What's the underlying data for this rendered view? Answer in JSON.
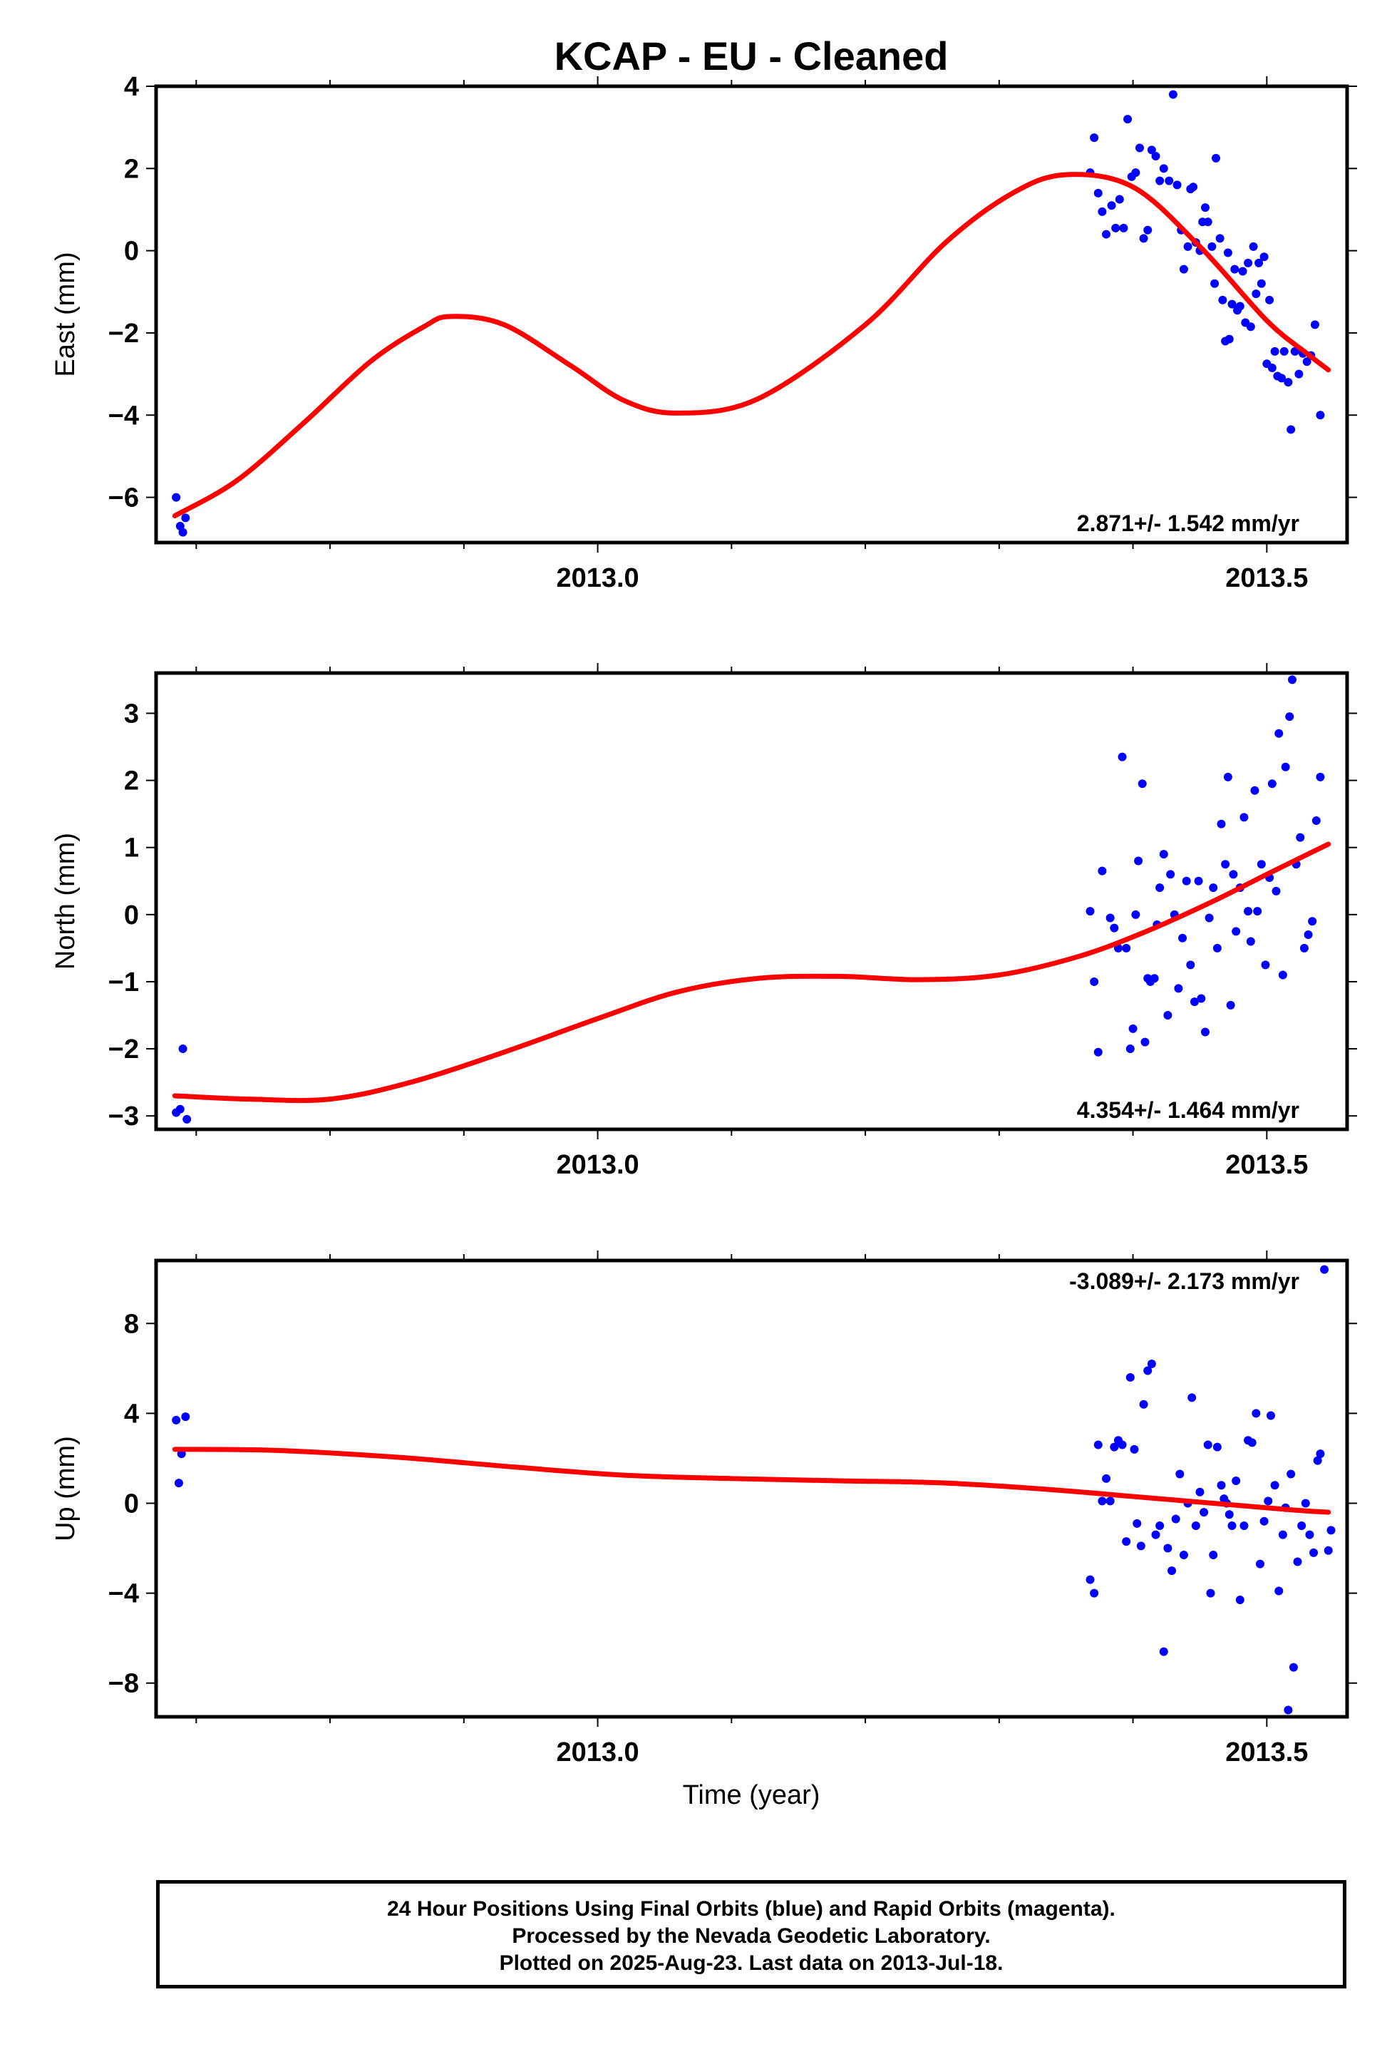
{
  "title": "KCAP  - EU - Cleaned",
  "colors": {
    "data_points": "#0000ff",
    "fit": "#ff0000",
    "axes": "#000000"
  },
  "xlabel": "Time (year)",
  "footer": {
    "line1": "24 Hour Positions Using Final Orbits (blue) and Rapid Orbits (magenta).",
    "line2": "Processed by the Nevada Geodetic Laboratory.",
    "line3": "Plotted on 2025-Aug-23. Last data on 2013-Jul-18."
  },
  "chart_data": [
    {
      "type": "scatter",
      "panel": "east",
      "ylabel": "East (mm)",
      "xlim": [
        2012.67,
        2013.56
      ],
      "ylim": [
        -7.1,
        4.0
      ],
      "xticks": [
        2013.0,
        2013.5
      ],
      "xtick_labels": [
        "2013.0",
        "2013.5"
      ],
      "yticks": [
        -6,
        -4,
        -2,
        0,
        2,
        4
      ],
      "ytick_labels": [
        "−6",
        "−4",
        "−2",
        "0",
        "2",
        "4"
      ],
      "annotation": "2.871+/- 1.542 mm/yr",
      "annotation_position": "bottom-right",
      "points": [
        [
          2012.685,
          -6.0
        ],
        [
          2012.688,
          -6.7
        ],
        [
          2012.69,
          -6.85
        ],
        [
          2012.692,
          -6.5
        ],
        [
          2013.368,
          1.9
        ],
        [
          2013.371,
          2.75
        ],
        [
          2013.374,
          1.4
        ],
        [
          2013.377,
          0.95
        ],
        [
          2013.38,
          0.4
        ],
        [
          2013.384,
          1.1
        ],
        [
          2013.387,
          0.55
        ],
        [
          2013.39,
          1.25
        ],
        [
          2013.393,
          0.55
        ],
        [
          2013.396,
          3.2
        ],
        [
          2013.399,
          1.8
        ],
        [
          2013.402,
          1.9
        ],
        [
          2013.405,
          2.5
        ],
        [
          2013.408,
          0.3
        ],
        [
          2013.411,
          0.5
        ],
        [
          2013.414,
          2.45
        ],
        [
          2013.417,
          2.3
        ],
        [
          2013.42,
          1.7
        ],
        [
          2013.423,
          2.0
        ],
        [
          2013.427,
          1.7
        ],
        [
          2013.43,
          3.8
        ],
        [
          2013.433,
          1.6
        ],
        [
          2013.436,
          0.5
        ],
        [
          2013.438,
          -0.45
        ],
        [
          2013.441,
          0.1
        ],
        [
          2013.443,
          1.5
        ],
        [
          2013.445,
          1.55
        ],
        [
          2013.447,
          0.2
        ],
        [
          2013.45,
          0.0
        ],
        [
          2013.452,
          0.7
        ],
        [
          2013.454,
          1.05
        ],
        [
          2013.456,
          0.7
        ],
        [
          2013.459,
          0.1
        ],
        [
          2013.461,
          -0.8
        ],
        [
          2013.462,
          2.25
        ],
        [
          2013.465,
          0.3
        ],
        [
          2013.467,
          -1.2
        ],
        [
          2013.469,
          -2.2
        ],
        [
          2013.471,
          -0.05
        ],
        [
          2013.472,
          -2.15
        ],
        [
          2013.474,
          -1.3
        ],
        [
          2013.476,
          -0.45
        ],
        [
          2013.478,
          -1.45
        ],
        [
          2013.48,
          -1.35
        ],
        [
          2013.482,
          -0.5
        ],
        [
          2013.484,
          -1.75
        ],
        [
          2013.486,
          -0.3
        ],
        [
          2013.488,
          -1.85
        ],
        [
          2013.49,
          0.1
        ],
        [
          2013.492,
          -1.05
        ],
        [
          2013.494,
          -0.3
        ],
        [
          2013.496,
          -0.8
        ],
        [
          2013.498,
          -0.15
        ],
        [
          2013.5,
          -2.75
        ],
        [
          2013.502,
          -1.2
        ],
        [
          2013.504,
          -2.85
        ],
        [
          2013.506,
          -2.45
        ],
        [
          2013.508,
          -3.05
        ],
        [
          2013.511,
          -3.1
        ],
        [
          2013.513,
          -2.45
        ],
        [
          2013.516,
          -3.2
        ],
        [
          2013.518,
          -4.35
        ],
        [
          2013.521,
          -2.45
        ],
        [
          2013.524,
          -3.0
        ],
        [
          2013.527,
          -2.5
        ],
        [
          2013.53,
          -2.7
        ],
        [
          2013.533,
          -2.55
        ],
        [
          2013.536,
          -1.8
        ],
        [
          2013.54,
          -4.0
        ]
      ],
      "fit": [
        [
          2012.684,
          -6.45
        ],
        [
          2012.73,
          -5.6
        ],
        [
          2012.78,
          -4.2
        ],
        [
          2012.83,
          -2.7
        ],
        [
          2012.87,
          -1.85
        ],
        [
          2012.89,
          -1.6
        ],
        [
          2012.93,
          -1.8
        ],
        [
          2012.98,
          -2.8
        ],
        [
          2013.02,
          -3.65
        ],
        [
          2013.06,
          -3.95
        ],
        [
          2013.12,
          -3.6
        ],
        [
          2013.2,
          -1.8
        ],
        [
          2013.26,
          0.2
        ],
        [
          2013.31,
          1.4
        ],
        [
          2013.35,
          1.85
        ],
        [
          2013.4,
          1.55
        ],
        [
          2013.45,
          0.1
        ],
        [
          2013.5,
          -1.7
        ],
        [
          2013.53,
          -2.5
        ],
        [
          2013.546,
          -2.9
        ]
      ]
    },
    {
      "type": "scatter",
      "panel": "north",
      "ylabel": "North (mm)",
      "xlim": [
        2012.67,
        2013.56
      ],
      "ylim": [
        -3.2,
        3.6
      ],
      "xticks": [
        2013.0,
        2013.5
      ],
      "xtick_labels": [
        "2013.0",
        "2013.5"
      ],
      "yticks": [
        -3,
        -2,
        -1,
        0,
        1,
        2,
        3
      ],
      "ytick_labels": [
        "−3",
        "−2",
        "−1",
        "0",
        "1",
        "2",
        "3"
      ],
      "annotation": "4.354+/- 1.464 mm/yr",
      "annotation_position": "bottom-right",
      "points": [
        [
          2012.685,
          -2.95
        ],
        [
          2012.688,
          -2.9
        ],
        [
          2012.69,
          -2.0
        ],
        [
          2012.693,
          -3.05
        ],
        [
          2013.368,
          0.05
        ],
        [
          2013.371,
          -1.0
        ],
        [
          2013.374,
          -2.05
        ],
        [
          2013.377,
          0.65
        ],
        [
          2013.383,
          -0.05
        ],
        [
          2013.386,
          -0.2
        ],
        [
          2013.389,
          -0.5
        ],
        [
          2013.392,
          2.35
        ],
        [
          2013.395,
          -0.5
        ],
        [
          2013.398,
          -2.0
        ],
        [
          2013.4,
          -1.7
        ],
        [
          2013.402,
          0.0
        ],
        [
          2013.404,
          0.8
        ],
        [
          2013.407,
          1.95
        ],
        [
          2013.409,
          -1.9
        ],
        [
          2013.411,
          -0.95
        ],
        [
          2013.413,
          -1.0
        ],
        [
          2013.416,
          -0.95
        ],
        [
          2013.418,
          -0.15
        ],
        [
          2013.42,
          0.4
        ],
        [
          2013.423,
          0.9
        ],
        [
          2013.426,
          -1.5
        ],
        [
          2013.428,
          0.6
        ],
        [
          2013.431,
          0.0
        ],
        [
          2013.434,
          -1.1
        ],
        [
          2013.437,
          -0.35
        ],
        [
          2013.44,
          0.5
        ],
        [
          2013.443,
          -0.75
        ],
        [
          2013.446,
          -1.3
        ],
        [
          2013.449,
          0.5
        ],
        [
          2013.451,
          -1.25
        ],
        [
          2013.454,
          -1.75
        ],
        [
          2013.457,
          -0.05
        ],
        [
          2013.46,
          0.4
        ],
        [
          2013.463,
          -0.5
        ],
        [
          2013.466,
          1.35
        ],
        [
          2013.469,
          0.75
        ],
        [
          2013.471,
          2.05
        ],
        [
          2013.473,
          -1.35
        ],
        [
          2013.475,
          0.6
        ],
        [
          2013.477,
          -0.25
        ],
        [
          2013.48,
          0.4
        ],
        [
          2013.483,
          1.45
        ],
        [
          2013.486,
          0.05
        ],
        [
          2013.488,
          -0.4
        ],
        [
          2013.491,
          1.85
        ],
        [
          2013.493,
          0.05
        ],
        [
          2013.496,
          0.75
        ],
        [
          2013.499,
          -0.75
        ],
        [
          2013.502,
          0.55
        ],
        [
          2013.504,
          1.95
        ],
        [
          2013.507,
          0.35
        ],
        [
          2013.509,
          2.7
        ],
        [
          2013.512,
          -0.9
        ],
        [
          2013.514,
          2.2
        ],
        [
          2013.517,
          2.95
        ],
        [
          2013.519,
          3.5
        ],
        [
          2013.522,
          0.75
        ],
        [
          2013.525,
          1.15
        ],
        [
          2013.528,
          -0.5
        ],
        [
          2013.531,
          -0.3
        ],
        [
          2013.534,
          -0.1
        ],
        [
          2013.537,
          1.4
        ],
        [
          2013.54,
          2.05
        ]
      ],
      "fit": [
        [
          2012.684,
          -2.7
        ],
        [
          2012.74,
          -2.75
        ],
        [
          2012.8,
          -2.75
        ],
        [
          2012.86,
          -2.5
        ],
        [
          2012.93,
          -2.05
        ],
        [
          2013.0,
          -1.55
        ],
        [
          2013.06,
          -1.15
        ],
        [
          2013.12,
          -0.95
        ],
        [
          2013.18,
          -0.92
        ],
        [
          2013.24,
          -0.97
        ],
        [
          2013.3,
          -0.9
        ],
        [
          2013.36,
          -0.62
        ],
        [
          2013.41,
          -0.25
        ],
        [
          2013.46,
          0.2
        ],
        [
          2013.5,
          0.6
        ],
        [
          2013.546,
          1.05
        ]
      ]
    },
    {
      "type": "scatter",
      "panel": "up",
      "ylabel": "Up (mm)",
      "xlabel": "Time (year)",
      "xlim": [
        2012.67,
        2013.56
      ],
      "ylim": [
        -9.5,
        10.8
      ],
      "xticks": [
        2013.0,
        2013.5
      ],
      "xtick_labels": [
        "2013.0",
        "2013.5"
      ],
      "yticks": [
        -8,
        -4,
        0,
        4,
        8
      ],
      "ytick_labels": [
        "−8",
        "−4",
        "0",
        "4",
        "8"
      ],
      "annotation": "-3.089+/- 2.173 mm/yr",
      "annotation_position": "top-right",
      "points": [
        [
          2012.685,
          3.7
        ],
        [
          2012.687,
          0.9
        ],
        [
          2012.689,
          2.2
        ],
        [
          2012.692,
          3.85
        ],
        [
          2013.368,
          -3.4
        ],
        [
          2013.371,
          -4.0
        ],
        [
          2013.374,
          2.6
        ],
        [
          2013.377,
          0.1
        ],
        [
          2013.38,
          1.1
        ],
        [
          2013.383,
          0.1
        ],
        [
          2013.386,
          2.5
        ],
        [
          2013.389,
          2.8
        ],
        [
          2013.392,
          2.6
        ],
        [
          2013.395,
          -1.7
        ],
        [
          2013.398,
          5.6
        ],
        [
          2013.401,
          2.4
        ],
        [
          2013.403,
          -0.9
        ],
        [
          2013.406,
          -1.9
        ],
        [
          2013.408,
          4.4
        ],
        [
          2013.411,
          5.9
        ],
        [
          2013.414,
          6.2
        ],
        [
          2013.417,
          -1.4
        ],
        [
          2013.42,
          -1.0
        ],
        [
          2013.423,
          -6.6
        ],
        [
          2013.426,
          -2.0
        ],
        [
          2013.429,
          -3.0
        ],
        [
          2013.432,
          -0.7
        ],
        [
          2013.435,
          1.3
        ],
        [
          2013.438,
          -2.3
        ],
        [
          2013.441,
          0.0
        ],
        [
          2013.444,
          4.7
        ],
        [
          2013.447,
          -1.0
        ],
        [
          2013.45,
          0.5
        ],
        [
          2013.453,
          -0.4
        ],
        [
          2013.456,
          2.6
        ],
        [
          2013.458,
          -4.0
        ],
        [
          2013.46,
          -2.3
        ],
        [
          2013.463,
          2.5
        ],
        [
          2013.466,
          0.8
        ],
        [
          2013.468,
          0.2
        ],
        [
          2013.47,
          0.0
        ],
        [
          2013.472,
          -0.5
        ],
        [
          2013.474,
          -1.0
        ],
        [
          2013.477,
          1.0
        ],
        [
          2013.48,
          -4.3
        ],
        [
          2013.483,
          -1.0
        ],
        [
          2013.486,
          2.8
        ],
        [
          2013.489,
          2.7
        ],
        [
          2013.492,
          4.0
        ],
        [
          2013.495,
          -2.7
        ],
        [
          2013.498,
          -0.8
        ],
        [
          2013.501,
          0.1
        ],
        [
          2013.503,
          3.9
        ],
        [
          2013.506,
          0.8
        ],
        [
          2013.509,
          -3.9
        ],
        [
          2013.512,
          -1.4
        ],
        [
          2013.514,
          -0.2
        ],
        [
          2013.516,
          -9.2
        ],
        [
          2013.518,
          1.3
        ],
        [
          2013.52,
          -7.3
        ],
        [
          2013.523,
          -2.6
        ],
        [
          2013.526,
          -1.0
        ],
        [
          2013.529,
          0.0
        ],
        [
          2013.532,
          -1.4
        ],
        [
          2013.535,
          -2.2
        ],
        [
          2013.538,
          1.9
        ],
        [
          2013.54,
          2.2
        ],
        [
          2013.543,
          10.4
        ],
        [
          2013.546,
          -2.1
        ],
        [
          2013.548,
          -1.2
        ]
      ],
      "fit": [
        [
          2012.684,
          2.4
        ],
        [
          2012.76,
          2.35
        ],
        [
          2012.85,
          2.05
        ],
        [
          2012.94,
          1.6
        ],
        [
          2013.02,
          1.25
        ],
        [
          2013.1,
          1.1
        ],
        [
          2013.18,
          1.0
        ],
        [
          2013.26,
          0.9
        ],
        [
          2013.34,
          0.6
        ],
        [
          2013.4,
          0.3
        ],
        [
          2013.46,
          0.0
        ],
        [
          2013.52,
          -0.3
        ],
        [
          2013.546,
          -0.4
        ]
      ]
    }
  ]
}
